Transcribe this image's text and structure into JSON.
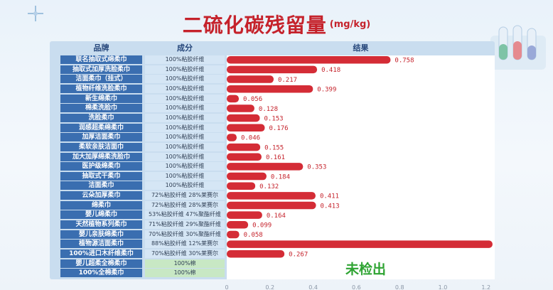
{
  "title": "二硫化碳残留量",
  "unit": "(mg/kg)",
  "headers": {
    "brand": "品牌",
    "component": "成分",
    "result": "结果"
  },
  "not_detected_label": "未检出",
  "colors": {
    "bar": "#d42c36",
    "title": "#c5222b",
    "brand_cell": "#3a6eb0",
    "not_detected": "#2fa433"
  },
  "chart_data": {
    "type": "bar",
    "orientation": "horizontal",
    "title": "二硫化碳残留量",
    "xlim": [
      0,
      1.2
    ],
    "x_ticks": [
      "0",
      "0.2",
      "0.4",
      "0.6",
      "0.8",
      "1.0",
      "1.2"
    ],
    "categories": [
      "联名抽取式绵柔巾",
      "抽取式加厚洗脸柔巾",
      "洁面柔巾（挂式）",
      "植物纤维洗脸柔巾",
      "新生绵柔巾",
      "棉柔洗脸巾",
      "洗脸柔巾",
      "润感超柔绵柔巾",
      "加厚洁面柔巾",
      "柔软亲肤洁面巾",
      "加大加厚绵柔洗脸巾",
      "医护级绵柔巾",
      "抽取式干柔巾",
      "洁面柔巾",
      "云朵加厚柔巾",
      "绵柔巾",
      "婴儿绵柔巾",
      "天然植物系列柔巾",
      "婴儿亲肤绵柔巾",
      "植物源洁面柔巾",
      "100%进口木纤维柔巾",
      "婴儿超柔全棉柔巾",
      "100%全棉柔巾"
    ],
    "components": [
      "100%粘胶纤维",
      "100%粘胶纤维",
      "100%粘胶纤维",
      "100%粘胶纤维",
      "100%粘胶纤维",
      "100%粘胶纤维",
      "100%粘胶纤维",
      "100%粘胶纤维",
      "100%粘胶纤维",
      "100%粘胶纤维",
      "100%粘胶纤维",
      "100%粘胶纤维",
      "100%粘胶纤维",
      "100%粘胶纤维",
      "72%粘胶纤维 28%莱赛尔",
      "72%粘胶纤维 28%莱赛尔",
      "53%粘胶纤维 47%聚酯纤维",
      "71%粘胶纤维 29%聚酯纤维",
      "70%粘胶纤维 30%聚酯纤维",
      "88%粘胶纤维 12%莱赛尔",
      "70%粘胶纤维 30%莱赛尔",
      "100%棉",
      "100%棉"
    ],
    "values": [
      0.758,
      0.418,
      0.217,
      0.399,
      0.056,
      0.128,
      0.153,
      0.176,
      0.046,
      0.155,
      0.161,
      0.353,
      0.184,
      0.132,
      0.411,
      0.413,
      0.164,
      0.099,
      0.058,
      1.23,
      0.267,
      null,
      null
    ],
    "value_labels": [
      "0.758",
      "0.418",
      "0.217",
      "0.399",
      "0.056",
      "0.128",
      "0.153",
      "0.176",
      "0.046",
      "0.155",
      "0.161",
      "0.353",
      "0.184",
      "0.132",
      "0.411",
      "0.413",
      "0.164",
      "0.099",
      "0.058",
      "",
      "0.267",
      "",
      ""
    ]
  }
}
